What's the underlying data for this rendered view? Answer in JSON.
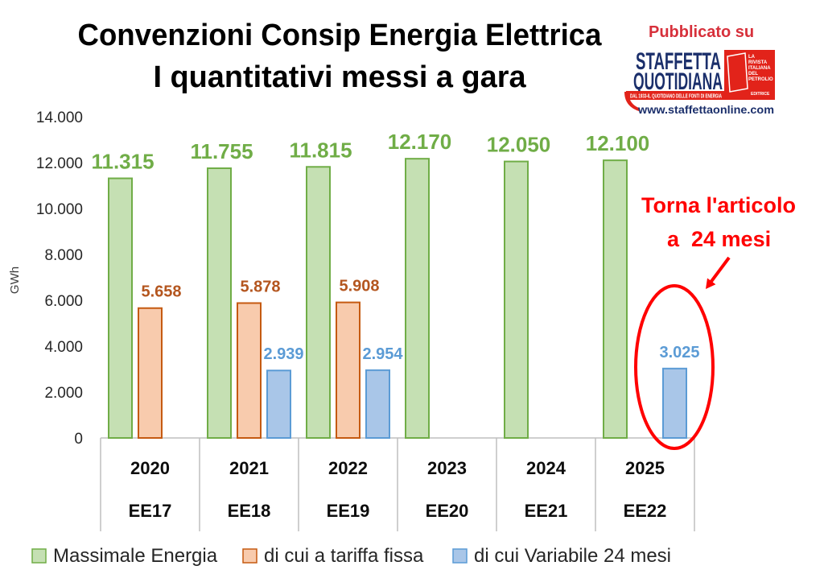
{
  "chart_data": {
    "type": "bar",
    "title": "Convenzioni Consip Energia Elettrica",
    "subtitle": "I quantitativi messi a gara",
    "ylabel": "GWh",
    "ylim": [
      0,
      14000
    ],
    "y_ticks": [
      0,
      2000,
      4000,
      6000,
      8000,
      10000,
      12000,
      14000
    ],
    "categories": [
      "2020",
      "2021",
      "2022",
      "2023",
      "2024",
      "2025"
    ],
    "category_groups": [
      "EE17",
      "EE18",
      "EE19",
      "EE20",
      "EE21",
      "EE22"
    ],
    "series": [
      {
        "name": "Massimale Energia",
        "values": [
          11315,
          11755,
          11815,
          12170,
          12050,
          12100
        ],
        "fill": "#c5e0b3",
        "color": "#70ad47",
        "label_color": "#70ad47"
      },
      {
        "name": "di cui a tariffa fissa",
        "values": [
          5658,
          5878,
          5908,
          null,
          null,
          null
        ],
        "fill": "#f8cbad",
        "color": "#c55a11",
        "label_color": "#b4561f"
      },
      {
        "name": "di cui Variabile 24 mesi",
        "values": [
          null,
          2939,
          2954,
          null,
          null,
          3025
        ],
        "fill": "#a9c6e8",
        "color": "#5b9bd5",
        "label_color": "#5b9bd5"
      }
    ],
    "data_labels": true,
    "grid": false,
    "legend": "bottom",
    "annotations": [
      {
        "lines": [
          "Torna l'articolo",
          "a  24 mesi"
        ],
        "color": "#ff0000"
      }
    ]
  },
  "logo": {
    "published_on": "Pubblicato su",
    "name_lines": [
      "STAFFETTA",
      "QUOTIDIANA"
    ],
    "tagline": "DAL 1933-IL QUOTIDIANO DELLE FONTI DI ENERGIA",
    "badge_lines": [
      "LA",
      "RIVISTA",
      "ITALIANA",
      "DEL",
      "PETROLIO"
    ],
    "badge_footer": "EDITRICE",
    "url": "www.staffettaonline.com",
    "red": "#e2231a",
    "navy": "#1b2f6b",
    "published_color": "#d7303b"
  }
}
